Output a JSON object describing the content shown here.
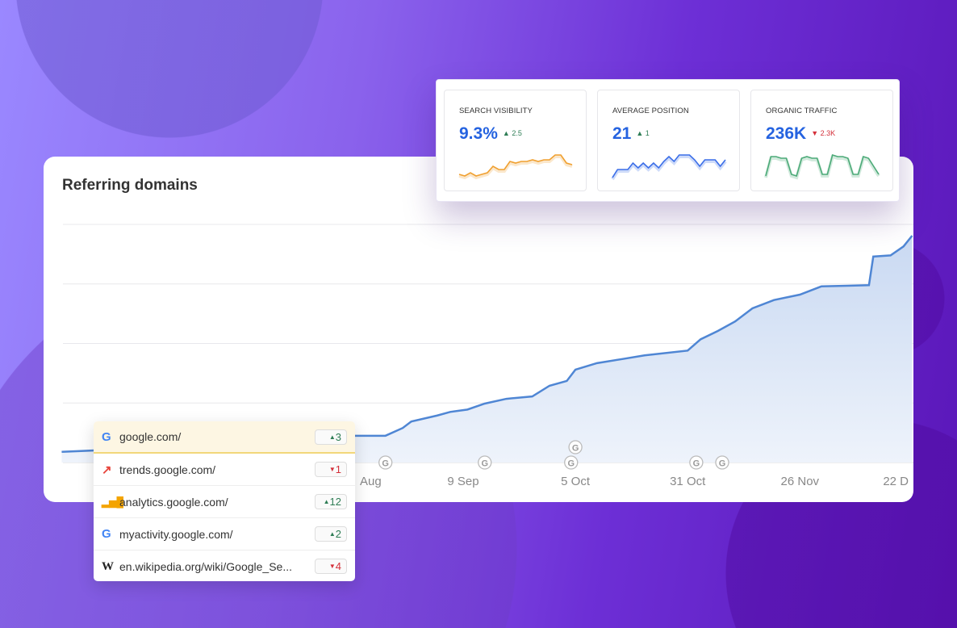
{
  "colors": {
    "accent": "#2563e0",
    "line": "#4f86d4",
    "up": "#2e7d55",
    "down": "#d4303a"
  },
  "card": {
    "title": "Referring domains"
  },
  "chart_data": {
    "type": "area",
    "title": "Referring domains",
    "x_tick_labels": [
      "Aug",
      "9 Sep",
      "5 Oct",
      "31 Oct",
      "26 Nov",
      "22 D"
    ],
    "x_ticks": [
      "2023-08-14",
      "2023-09-09",
      "2023-10-05",
      "2023-10-31",
      "2023-11-26",
      "2023-12-22"
    ],
    "grid": true,
    "ylim": [
      0,
      4
    ],
    "x": [
      "2023-06-08",
      "2023-07-01",
      "2023-07-20",
      "2023-08-15",
      "2023-08-22",
      "2023-08-26",
      "2023-08-28",
      "2023-09-03",
      "2023-09-06",
      "2023-09-10",
      "2023-09-14",
      "2023-09-19",
      "2023-09-25",
      "2023-09-29",
      "2023-10-03",
      "2023-10-05",
      "2023-10-10",
      "2023-10-16",
      "2023-10-21",
      "2023-10-31",
      "2023-11-03",
      "2023-11-07",
      "2023-11-11",
      "2023-11-15",
      "2023-11-20",
      "2023-11-26",
      "2023-12-01",
      "2023-12-07",
      "2023-12-12",
      "2023-12-13",
      "2023-12-17",
      "2023-12-20",
      "2023-12-22"
    ],
    "y": [
      0.18,
      0.25,
      0.3,
      0.45,
      0.45,
      0.58,
      0.69,
      0.79,
      0.85,
      0.89,
      0.99,
      1.07,
      1.11,
      1.29,
      1.37,
      1.56,
      1.67,
      1.74,
      1.8,
      1.88,
      2.07,
      2.21,
      2.37,
      2.59,
      2.73,
      2.82,
      2.96,
      2.97,
      2.98,
      3.46,
      3.48,
      3.63,
      3.81
    ],
    "annotations": {
      "icon": "google-update-icon",
      "label": "G",
      "dates": [
        "2023-08-22",
        "2023-09-14",
        "2023-10-04",
        "2023-10-05",
        "2023-11-02",
        "2023-11-08"
      ]
    }
  },
  "metrics": [
    {
      "title": "SEARCH VISIBILITY",
      "value": "9.3%",
      "delta": "2.5",
      "direction": "up",
      "color": "#f0a030",
      "spark": [
        3,
        2,
        4,
        2,
        3,
        4,
        8,
        6,
        6,
        11,
        10,
        11,
        11,
        12,
        11,
        12,
        12,
        15,
        15,
        10,
        9
      ]
    },
    {
      "title": "AVERAGE POSITION",
      "value": "21",
      "delta": "1",
      "direction": "up",
      "color": "#3b6ee8",
      "spark": [
        1,
        6,
        6,
        6,
        10,
        7,
        10,
        7,
        10,
        7,
        11,
        14,
        11,
        15,
        15,
        15,
        12,
        8,
        12,
        12,
        12,
        8,
        12
      ]
    },
    {
      "title": "ORGANIC TRAFFIC",
      "value": "236K",
      "delta": "2.3K",
      "direction": "down",
      "color": "#4caa78",
      "spark": [
        2,
        14,
        14,
        13,
        13,
        3,
        2,
        13,
        14,
        13,
        13,
        3,
        3,
        15,
        14,
        14,
        13,
        3,
        3,
        14,
        13,
        8,
        3
      ]
    }
  ],
  "domains": [
    {
      "icon": "google-icon",
      "glyph": "G",
      "label": "google.com/",
      "delta": "3",
      "direction": "up"
    },
    {
      "icon": "trends-icon",
      "glyph": "↗",
      "label": "trends.google.com/",
      "delta": "1",
      "direction": "down"
    },
    {
      "icon": "analytics-icon",
      "glyph": "▮",
      "label": "analytics.google.com/",
      "delta": "12",
      "direction": "up"
    },
    {
      "icon": "google-icon",
      "glyph": "G",
      "label": "myactivity.google.com/",
      "delta": "2",
      "direction": "up"
    },
    {
      "icon": "wikipedia-icon",
      "glyph": "W",
      "label": "en.wikipedia.org/wiki/Google_Se...",
      "delta": "4",
      "direction": "down"
    }
  ]
}
